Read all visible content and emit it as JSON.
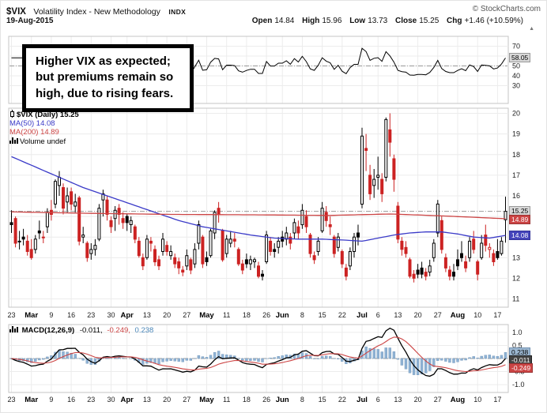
{
  "header": {
    "symbol": "$VIX",
    "name": "Volatility Index - New Methodology",
    "exchange": "INDX",
    "credit": "© StockCharts.com",
    "date": "19-Aug-2015",
    "quote": {
      "open_label": "Open",
      "open": "14.84",
      "high_label": "High",
      "high": "15.96",
      "low_label": "Low",
      "low": "13.73",
      "close_label": "Close",
      "close": "15.25",
      "chg_label": "Chg",
      "chg": "+1.46 (+10.59%)"
    }
  },
  "icons": {
    "up_arrow": "▲"
  },
  "annotation": {
    "text": "Higher VIX as expected; but premiums remain so high, due to rising fears."
  },
  "legend": {
    "series": "$VIX (Daily) 15.25",
    "ma50": "MA(50) 14.08",
    "ma200": "MA(200) 14.89",
    "volume": "Volume undef"
  },
  "macd_legend": {
    "title": "MACD(12,26,9)",
    "line": "-0.011,",
    "signal": "-0.249,",
    "hist": "0.238"
  },
  "labels": {
    "top_indicator": "58.05",
    "last_price": "15.25",
    "ma200": "14.89",
    "ma50": "14.08",
    "macd_hist": "0.238",
    "macd_line": "-0.011",
    "macd_signal": "-0.249"
  },
  "colors": {
    "ma50": "#3a3ac8",
    "ma200": "#cc4444",
    "candle_down": "#cc2222",
    "candle_up": "#000000",
    "macd_line": "#000000",
    "macd_signal": "#cc4444",
    "histogram": "#8fb2d4",
    "grid": "#ececec",
    "reference": "#999999"
  },
  "chart_data": [
    {
      "panel": "momentum",
      "type": "line",
      "yticks": [
        "70",
        "60",
        "50",
        "40",
        "30"
      ],
      "reference_value": 50,
      "last_value": 58.05
    },
    {
      "panel": "price",
      "type": "candlestick",
      "title": "$VIX (Daily)",
      "last": 15.25,
      "ylim": [
        11,
        20
      ],
      "yticks": [
        "20",
        "19",
        "18",
        "17",
        "16",
        "15",
        "14",
        "13",
        "12",
        "11"
      ],
      "x_ticks": [
        [
          0,
          "23"
        ],
        [
          5,
          "Mar"
        ],
        [
          10,
          "9"
        ],
        [
          15,
          "16"
        ],
        [
          20,
          "23"
        ],
        [
          25,
          "30"
        ],
        [
          29,
          "Apr"
        ],
        [
          34,
          "13"
        ],
        [
          39,
          "20"
        ],
        [
          44,
          "27"
        ],
        [
          49,
          "May"
        ],
        [
          54,
          "11"
        ],
        [
          59,
          "18"
        ],
        [
          64,
          "26"
        ],
        [
          68,
          "Jun"
        ],
        [
          73,
          "8"
        ],
        [
          78,
          "15"
        ],
        [
          83,
          "22"
        ],
        [
          88,
          "Jul"
        ],
        [
          92,
          "6"
        ],
        [
          97,
          "13"
        ],
        [
          102,
          "20"
        ],
        [
          107,
          "27"
        ],
        [
          112,
          "Aug"
        ],
        [
          117,
          "10"
        ],
        [
          122,
          "17"
        ]
      ],
      "ohlc": [
        [
          14.7,
          15.3,
          14.2,
          14.6
        ],
        [
          14.9,
          15.0,
          13.5,
          13.7
        ],
        [
          13.8,
          14.3,
          13.4,
          13.8
        ],
        [
          14.0,
          14.4,
          13.6,
          13.9
        ],
        [
          13.8,
          14.1,
          13.1,
          13.3
        ],
        [
          13.4,
          13.9,
          12.9,
          13.0
        ],
        [
          13.4,
          14.1,
          13.2,
          13.9
        ],
        [
          14.3,
          14.8,
          13.9,
          14.2
        ],
        [
          14.0,
          14.3,
          13.7,
          14.0
        ],
        [
          14.5,
          15.4,
          14.2,
          15.2
        ],
        [
          15.3,
          15.8,
          14.8,
          15.1
        ],
        [
          15.6,
          16.8,
          15.4,
          16.7
        ],
        [
          16.5,
          17.2,
          16.0,
          16.9
        ],
        [
          16.4,
          16.6,
          15.1,
          15.4
        ],
        [
          15.7,
          16.4,
          15.2,
          16.0
        ],
        [
          16.2,
          16.4,
          15.3,
          15.6
        ],
        [
          15.5,
          16.1,
          15.2,
          15.7
        ],
        [
          15.9,
          16.0,
          13.6,
          13.8
        ],
        [
          14.0,
          14.5,
          13.7,
          14.1
        ],
        [
          13.7,
          13.8,
          12.8,
          13.0
        ],
        [
          13.2,
          13.7,
          12.9,
          13.4
        ],
        [
          13.4,
          13.9,
          13.1,
          13.6
        ],
        [
          13.9,
          15.6,
          13.8,
          15.4
        ],
        [
          15.8,
          16.3,
          15.0,
          16.1
        ],
        [
          15.8,
          16.0,
          14.8,
          15.1
        ],
        [
          14.8,
          15.0,
          14.2,
          14.5
        ],
        [
          14.9,
          15.5,
          14.3,
          15.3
        ],
        [
          15.4,
          15.6,
          14.6,
          15.1
        ],
        [
          14.9,
          15.2,
          14.4,
          14.7
        ],
        [
          15.0,
          15.1,
          14.3,
          14.7
        ],
        [
          14.6,
          15.0,
          14.2,
          14.8
        ],
        [
          14.5,
          14.6,
          13.7,
          13.9
        ],
        [
          13.8,
          14.0,
          13.0,
          13.1
        ],
        [
          13.0,
          13.2,
          12.4,
          12.6
        ],
        [
          13.0,
          14.1,
          12.9,
          13.9
        ],
        [
          13.8,
          14.0,
          13.3,
          13.7
        ],
        [
          13.4,
          13.6,
          12.6,
          12.8
        ],
        [
          12.9,
          13.1,
          12.4,
          12.6
        ],
        [
          13.3,
          14.2,
          13.1,
          13.9
        ],
        [
          13.6,
          13.8,
          13.1,
          13.3
        ],
        [
          13.1,
          13.6,
          12.9,
          13.3
        ],
        [
          13.0,
          13.2,
          12.5,
          12.7
        ],
        [
          12.8,
          13.0,
          12.2,
          12.5
        ],
        [
          12.4,
          12.6,
          12.1,
          12.3
        ],
        [
          12.6,
          13.4,
          12.4,
          13.1
        ],
        [
          12.9,
          13.0,
          12.2,
          12.4
        ],
        [
          12.7,
          13.7,
          12.5,
          13.4
        ],
        [
          13.7,
          14.8,
          13.4,
          14.6
        ],
        [
          14.0,
          14.1,
          12.5,
          12.7
        ],
        [
          13.0,
          13.3,
          12.6,
          12.8
        ],
        [
          13.1,
          14.4,
          13.0,
          14.3
        ],
        [
          14.2,
          15.3,
          13.9,
          15.2
        ],
        [
          15.4,
          15.7,
          14.7,
          15.1
        ],
        [
          14.3,
          14.4,
          12.8,
          12.9
        ],
        [
          13.2,
          14.1,
          13.0,
          13.9
        ],
        [
          13.7,
          14.3,
          13.5,
          13.9
        ],
        [
          13.9,
          14.2,
          13.5,
          13.8
        ],
        [
          13.4,
          13.5,
          12.6,
          12.7
        ],
        [
          12.7,
          12.9,
          12.2,
          12.4
        ],
        [
          12.9,
          13.2,
          12.5,
          12.7
        ],
        [
          12.7,
          13.1,
          12.4,
          12.9
        ],
        [
          12.8,
          13.0,
          12.5,
          12.9
        ],
        [
          12.6,
          12.8,
          12.0,
          12.1
        ],
        [
          12.2,
          12.4,
          11.9,
          12.1
        ],
        [
          12.8,
          14.3,
          12.7,
          14.1
        ],
        [
          13.8,
          14.0,
          13.1,
          13.3
        ],
        [
          13.4,
          13.7,
          13.0,
          13.3
        ],
        [
          13.5,
          14.0,
          13.2,
          13.8
        ],
        [
          14.0,
          14.3,
          13.5,
          13.8
        ],
        [
          13.9,
          14.5,
          13.6,
          14.2
        ],
        [
          14.0,
          14.2,
          13.4,
          13.7
        ],
        [
          14.2,
          14.9,
          13.9,
          14.7
        ],
        [
          14.5,
          14.8,
          13.9,
          14.2
        ],
        [
          14.6,
          15.6,
          14.4,
          15.3
        ],
        [
          15.0,
          15.3,
          14.2,
          14.5
        ],
        [
          14.1,
          14.2,
          13.0,
          13.2
        ],
        [
          13.1,
          13.3,
          12.7,
          12.9
        ],
        [
          13.3,
          14.0,
          13.1,
          13.8
        ],
        [
          14.3,
          15.7,
          14.2,
          15.4
        ],
        [
          15.2,
          15.5,
          14.5,
          14.8
        ],
        [
          14.6,
          15.0,
          14.1,
          14.5
        ],
        [
          14.0,
          14.1,
          13.0,
          13.2
        ],
        [
          13.5,
          14.2,
          13.3,
          14.0
        ],
        [
          13.3,
          13.4,
          12.5,
          12.7
        ],
        [
          12.5,
          12.7,
          11.9,
          12.1
        ],
        [
          12.6,
          13.5,
          12.4,
          13.3
        ],
        [
          13.3,
          14.2,
          13.0,
          14.0
        ],
        [
          14.2,
          14.6,
          13.6,
          14.0
        ],
        [
          15.6,
          19.3,
          15.4,
          18.9
        ],
        [
          18.3,
          19.0,
          17.2,
          18.2
        ],
        [
          17.0,
          17.5,
          15.8,
          16.1
        ],
        [
          16.5,
          17.3,
          15.9,
          16.8
        ],
        [
          16.9,
          17.9,
          16.3,
          17.0
        ],
        [
          16.8,
          17.1,
          15.7,
          16.1
        ],
        [
          16.9,
          19.8,
          16.7,
          19.7
        ],
        [
          19.2,
          20.0,
          17.9,
          18.6
        ],
        [
          17.8,
          18.0,
          16.2,
          16.8
        ],
        [
          15.5,
          15.7,
          13.7,
          13.9
        ],
        [
          13.8,
          14.0,
          13.1,
          13.4
        ],
        [
          13.5,
          13.8,
          13.0,
          13.2
        ],
        [
          12.9,
          13.0,
          12.0,
          12.1
        ],
        [
          12.2,
          12.4,
          11.8,
          12.0
        ],
        [
          12.4,
          12.7,
          12.0,
          12.2
        ],
        [
          12.5,
          12.8,
          12.0,
          12.2
        ],
        [
          12.3,
          12.5,
          11.9,
          12.1
        ],
        [
          12.3,
          12.9,
          12.1,
          12.6
        ],
        [
          13.0,
          13.9,
          12.8,
          13.7
        ],
        [
          14.2,
          15.8,
          14.0,
          15.6
        ],
        [
          14.8,
          15.0,
          13.2,
          13.4
        ],
        [
          13.0,
          13.2,
          12.3,
          12.5
        ],
        [
          12.4,
          12.6,
          11.9,
          12.1
        ],
        [
          12.3,
          12.7,
          11.9,
          12.1
        ],
        [
          12.9,
          13.4,
          12.4,
          12.6
        ],
        [
          13.2,
          13.8,
          12.8,
          13.0
        ],
        [
          12.8,
          13.1,
          12.3,
          12.5
        ],
        [
          13.0,
          14.0,
          12.8,
          13.8
        ],
        [
          13.9,
          14.3,
          13.2,
          13.4
        ],
        [
          12.8,
          12.9,
          11.9,
          12.2
        ],
        [
          13.0,
          14.1,
          12.9,
          13.7
        ],
        [
          14.1,
          14.6,
          13.3,
          13.6
        ],
        [
          13.4,
          13.7,
          13.0,
          13.5
        ],
        [
          13.2,
          13.4,
          12.6,
          12.8
        ],
        [
          13.3,
          13.9,
          12.9,
          13.0
        ],
        [
          13.2,
          14.0,
          13.1,
          13.8
        ],
        [
          14.84,
          15.96,
          13.73,
          15.25
        ]
      ],
      "ma50_anchors": [
        [
          0,
          17.9
        ],
        [
          6,
          17.4
        ],
        [
          12,
          16.9
        ],
        [
          18,
          16.4
        ],
        [
          24,
          16.0
        ],
        [
          30,
          15.6
        ],
        [
          36,
          15.2
        ],
        [
          42,
          14.8
        ],
        [
          48,
          14.5
        ],
        [
          54,
          14.3
        ],
        [
          60,
          14.1
        ],
        [
          66,
          13.95
        ],
        [
          72,
          13.9
        ],
        [
          78,
          13.9
        ],
        [
          84,
          13.85
        ],
        [
          88,
          13.8
        ],
        [
          92,
          13.95
        ],
        [
          96,
          14.1
        ],
        [
          100,
          14.2
        ],
        [
          104,
          14.25
        ],
        [
          108,
          14.25
        ],
        [
          112,
          14.15
        ],
        [
          116,
          14.0
        ],
        [
          120,
          13.95
        ],
        [
          124,
          14.08
        ]
      ],
      "ma200_anchors": [
        [
          0,
          15.22
        ],
        [
          20,
          15.15
        ],
        [
          40,
          15.1
        ],
        [
          60,
          15.08
        ],
        [
          80,
          15.05
        ],
        [
          95,
          15.12
        ],
        [
          105,
          15.05
        ],
        [
          115,
          14.97
        ],
        [
          124,
          14.89
        ]
      ]
    },
    {
      "panel": "macd",
      "type": "line",
      "params": [
        12,
        26,
        9
      ],
      "macd": -0.011,
      "signal": -0.249,
      "histogram": 0.238,
      "yticks": [
        "1.0",
        "0.5",
        "0.0",
        "-0.5",
        "-1.0"
      ],
      "reference_value": 0
    }
  ]
}
